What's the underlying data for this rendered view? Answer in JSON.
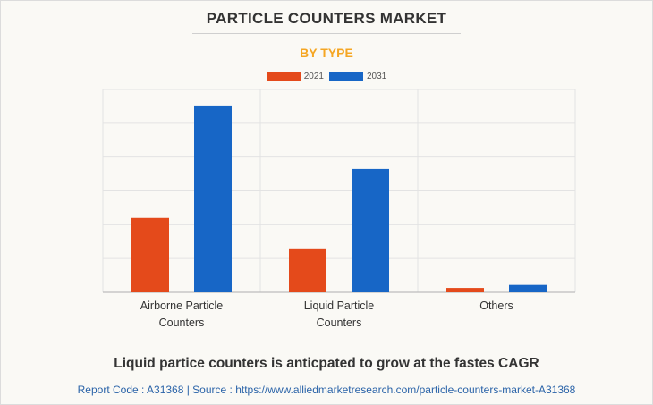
{
  "header": {
    "title": "PARTICLE COUNTERS MARKET",
    "subtitle": "BY TYPE"
  },
  "colors": {
    "series_2021": "#e44a1b",
    "series_2031": "#1766c6",
    "subtitle": "#f5a623",
    "source_text": "#2a63a8"
  },
  "chart_data": {
    "type": "bar",
    "categories": [
      [
        "Airborne Particle",
        "Counters"
      ],
      [
        "Liquid Particle",
        "Counters"
      ],
      [
        "Others"
      ]
    ],
    "series": [
      {
        "name": "2021",
        "values": [
          2.2,
          1.3,
          0.13
        ]
      },
      {
        "name": "2031",
        "values": [
          5.5,
          3.65,
          0.22
        ]
      }
    ],
    "ylim": [
      0,
      6
    ],
    "grid": true,
    "legend_position": "top-center"
  },
  "footer": {
    "headline": "Liquid partice counters is anticpated to grow at the fastes CAGR",
    "source": "Report Code : A31368  |  Source : https://www.alliedmarketresearch.com/particle-counters-market-A31368"
  }
}
